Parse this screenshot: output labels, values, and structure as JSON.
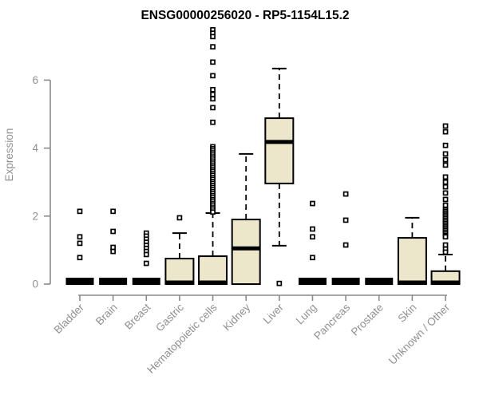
{
  "title": "ENSG00000256020 - RP5-1154L15.2",
  "chart_data": {
    "type": "boxplot",
    "title": "ENSG00000256020 - RP5-1154L15.2",
    "xlabel": "",
    "ylabel": "Expression",
    "yticks": [
      0,
      2,
      4,
      6
    ],
    "ylim": [
      0,
      7.6
    ],
    "grid": false,
    "legend": "none",
    "categories": [
      "Bladder",
      "Brain",
      "Breast",
      "Gastric",
      "Hematopoietic cells",
      "Kidney",
      "Liver",
      "Lung",
      "Pancreas",
      "Prostate",
      "Skin",
      "Unknown / Other"
    ],
    "boxes": [
      {
        "whisker_low": 0,
        "q1": 0,
        "median": 0,
        "q3": 0,
        "whisker_high": 0,
        "outliers": [
          2.14,
          1.39,
          1.2,
          0.78
        ]
      },
      {
        "whisker_low": 0,
        "q1": 0,
        "median": 0,
        "q3": 0,
        "whisker_high": 0,
        "outliers": [
          2.14,
          1.55,
          1.08,
          0.96
        ]
      },
      {
        "whisker_low": 0,
        "q1": 0,
        "median": 0,
        "q3": 0,
        "whisker_high": 0,
        "outliers": [
          1.5,
          1.41,
          1.32,
          1.23,
          1.14,
          1.05,
          0.96,
          0.87,
          0.61
        ]
      },
      {
        "whisker_low": 0,
        "q1": 0,
        "median": 0,
        "q3": 0.75,
        "whisker_high": 1.5,
        "outliers": [
          1.95
        ]
      },
      {
        "whisker_low": 0,
        "q1": 0,
        "median": 0,
        "q3": 0.82,
        "whisker_high": 2.09,
        "outliers": [
          7.48,
          7.38,
          7.28,
          6.98,
          6.53,
          6.13,
          5.72,
          5.58,
          5.45,
          5.19,
          4.76,
          4.04,
          3.98,
          3.92,
          3.86,
          3.8,
          3.74,
          3.68,
          3.62,
          3.56,
          3.5,
          3.44,
          3.38,
          3.32,
          3.26,
          3.2,
          3.14,
          3.08,
          3.02,
          2.96,
          2.9,
          2.84,
          2.78,
          2.72,
          2.66,
          2.6,
          2.54,
          2.48,
          2.42,
          2.36,
          2.3,
          2.24,
          2.18,
          2.12
        ]
      },
      {
        "whisker_low": 0,
        "q1": 0,
        "median": 1.05,
        "q3": 1.9,
        "whisker_high": 3.83,
        "outliers": []
      },
      {
        "whisker_low": 1.13,
        "q1": 2.96,
        "median": 4.18,
        "q3": 4.88,
        "whisker_high": 6.34,
        "outliers": [
          0.02
        ]
      },
      {
        "whisker_low": 0,
        "q1": 0,
        "median": 0,
        "q3": 0,
        "whisker_high": 0,
        "outliers": [
          2.37,
          1.62,
          1.39,
          0.78
        ]
      },
      {
        "whisker_low": 0,
        "q1": 0,
        "median": 0,
        "q3": 0,
        "whisker_high": 0,
        "outliers": [
          2.65,
          1.88,
          1.15
        ]
      },
      {
        "whisker_low": 0,
        "q1": 0,
        "median": 0,
        "q3": 0,
        "whisker_high": 0,
        "outliers": []
      },
      {
        "whisker_low": 0,
        "q1": 0,
        "median": 0,
        "q3": 1.36,
        "whisker_high": 1.95,
        "outliers": []
      },
      {
        "whisker_low": 0,
        "q1": 0,
        "median": 0,
        "q3": 0.38,
        "whisker_high": 0.87,
        "outliers": [
          4.65,
          4.48,
          4.08,
          3.83,
          3.66,
          3.5,
          3.15,
          3.0,
          2.86,
          2.68,
          2.49,
          2.32,
          2.18,
          2.13,
          2.08,
          2.03,
          1.98,
          1.93,
          1.88,
          1.83,
          1.78,
          1.73,
          1.68,
          1.63,
          1.58,
          1.53,
          1.48,
          1.43,
          1.39,
          1.15,
          1.03,
          0.94
        ]
      }
    ],
    "colors": {
      "box_fill": "#ECE7CB",
      "box_stroke": "#000000",
      "whisker": "#000000",
      "outlier_stroke": "#000000",
      "axis_line": "#8a8a8a",
      "axis_text": "#909090",
      "title_text": "#000000",
      "background": "#ffffff"
    }
  }
}
